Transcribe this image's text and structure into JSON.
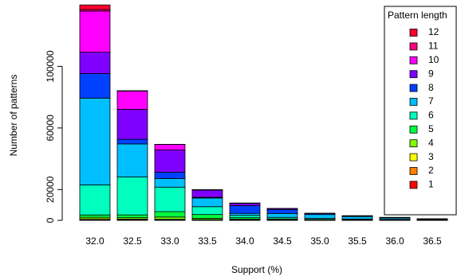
{
  "chart_data": {
    "type": "stacked-bar",
    "x_label": "Support (%)",
    "y_label": "Number of patterns",
    "legend_title": "Pattern length",
    "legend": "top-right",
    "categories": [
      "32.0",
      "32.5",
      "33.0",
      "33.5",
      "34.0",
      "34.5",
      "35.0",
      "35.5",
      "36.0",
      "36.5"
    ],
    "ylim": [
      0,
      140000
    ],
    "yticks": [
      0,
      20000,
      60000,
      100000
    ],
    "series": [
      {
        "name": "1",
        "color": "#FF0000",
        "values": [
          100,
          80,
          60,
          40,
          30,
          20,
          10,
          10,
          5,
          5
        ]
      },
      {
        "name": "2",
        "color": "#FF8000",
        "values": [
          300,
          250,
          200,
          150,
          100,
          60,
          40,
          30,
          20,
          10
        ]
      },
      {
        "name": "3",
        "color": "#FFFF00",
        "values": [
          600,
          500,
          400,
          300,
          200,
          120,
          80,
          50,
          30,
          20
        ]
      },
      {
        "name": "4",
        "color": "#80FF00",
        "values": [
          1000,
          900,
          1500,
          800,
          400,
          250,
          150,
          100,
          60,
          40
        ]
      },
      {
        "name": "5",
        "color": "#00FF40",
        "values": [
          1500,
          1800,
          3500,
          2500,
          1000,
          500,
          300,
          200,
          100,
          50
        ]
      },
      {
        "name": "6",
        "color": "#00FFBF",
        "values": [
          19500,
          24600,
          15900,
          5100,
          1500,
          1000,
          700,
          500,
          400,
          200
        ]
      },
      {
        "name": "7",
        "color": "#00BFFF",
        "values": [
          56400,
          21500,
          5600,
          5600,
          1300,
          2500,
          2500,
          1600,
          900,
          400
        ]
      },
      {
        "name": "8",
        "color": "#0040FF",
        "values": [
          15900,
          3000,
          4100,
          500,
          5000,
          2500,
          700,
          400,
          300,
          200
        ]
      },
      {
        "name": "9",
        "color": "#8000FF",
        "values": [
          13900,
          19500,
          14400,
          4600,
          1500,
          700,
          100,
          100,
          100,
          50
        ]
      },
      {
        "name": "10",
        "color": "#FF00FF",
        "values": [
          26700,
          11800,
          3600,
          300,
          200,
          50,
          20,
          10,
          5,
          5
        ]
      },
      {
        "name": "11",
        "color": "#FF0080",
        "values": [
          1000,
          200,
          50,
          20,
          10,
          5,
          0,
          0,
          0,
          0
        ]
      },
      {
        "name": "12",
        "color": "#FF0030",
        "values": [
          3000,
          30,
          10,
          5,
          0,
          0,
          0,
          0,
          0,
          0
        ]
      }
    ]
  }
}
